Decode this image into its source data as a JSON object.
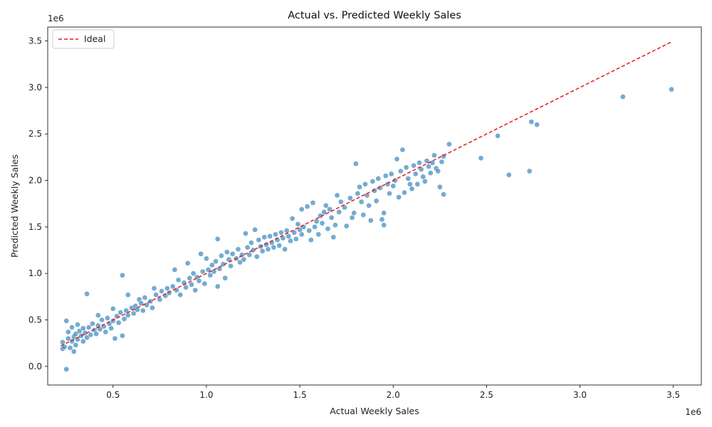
{
  "chart_data": {
    "type": "scatter",
    "title": "Actual vs. Predicted Weekly Sales",
    "xlabel": "Actual Weekly Sales",
    "ylabel": "Predicted Weekly Sales",
    "x_offset_label": "1e6",
    "y_offset_label": "1e6",
    "xlim": [
      0.15,
      3.65
    ],
    "ylim": [
      -0.2,
      3.65
    ],
    "x_ticks": [
      0.5,
      1.0,
      1.5,
      2.0,
      2.5,
      3.0,
      3.5
    ],
    "x_tick_labels": [
      "0.5",
      "1.0",
      "1.5",
      "2.0",
      "2.5",
      "3.0",
      "3.5"
    ],
    "y_ticks": [
      0.0,
      0.5,
      1.0,
      1.5,
      2.0,
      2.5,
      3.0,
      3.5
    ],
    "y_tick_labels": [
      "0.0",
      "0.5",
      "1.0",
      "1.5",
      "2.0",
      "2.5",
      "3.0",
      "3.5"
    ],
    "grid": false,
    "legend": {
      "position": "top-left",
      "entries": [
        {
          "label": "Ideal",
          "style": "dashed",
          "color": "#e41a1c"
        }
      ]
    },
    "point_color": "#1f77b4",
    "ideal_line": {
      "label": "Ideal",
      "x": [
        0.22,
        3.49
      ],
      "y": [
        0.22,
        3.49
      ],
      "color": "#e41a1c"
    },
    "points": [
      [
        0.23,
        0.26
      ],
      [
        0.23,
        0.19
      ],
      [
        0.24,
        0.21
      ],
      [
        0.25,
        0.49
      ],
      [
        0.25,
        -0.03
      ],
      [
        0.26,
        0.3
      ],
      [
        0.26,
        0.37
      ],
      [
        0.27,
        0.2
      ],
      [
        0.28,
        0.27
      ],
      [
        0.28,
        0.42
      ],
      [
        0.29,
        0.16
      ],
      [
        0.29,
        0.32
      ],
      [
        0.3,
        0.23
      ],
      [
        0.3,
        0.35
      ],
      [
        0.31,
        0.45
      ],
      [
        0.31,
        0.29
      ],
      [
        0.32,
        0.38
      ],
      [
        0.33,
        0.33
      ],
      [
        0.34,
        0.41
      ],
      [
        0.34,
        0.27
      ],
      [
        0.35,
        0.36
      ],
      [
        0.36,
        0.31
      ],
      [
        0.36,
        0.78
      ],
      [
        0.37,
        0.42
      ],
      [
        0.38,
        0.34
      ],
      [
        0.39,
        0.46
      ],
      [
        0.4,
        0.39
      ],
      [
        0.41,
        0.35
      ],
      [
        0.42,
        0.55
      ],
      [
        0.42,
        0.44
      ],
      [
        0.43,
        0.4
      ],
      [
        0.44,
        0.5
      ],
      [
        0.45,
        0.43
      ],
      [
        0.46,
        0.37
      ],
      [
        0.47,
        0.52
      ],
      [
        0.48,
        0.46
      ],
      [
        0.49,
        0.41
      ],
      [
        0.5,
        0.62
      ],
      [
        0.5,
        0.49
      ],
      [
        0.51,
        0.3
      ],
      [
        0.52,
        0.54
      ],
      [
        0.53,
        0.47
      ],
      [
        0.54,
        0.58
      ],
      [
        0.55,
        0.33
      ],
      [
        0.55,
        0.98
      ],
      [
        0.56,
        0.51
      ],
      [
        0.57,
        0.6
      ],
      [
        0.58,
        0.55
      ],
      [
        0.58,
        0.77
      ],
      [
        0.6,
        0.63
      ],
      [
        0.61,
        0.57
      ],
      [
        0.62,
        0.65
      ],
      [
        0.63,
        0.61
      ],
      [
        0.64,
        0.72
      ],
      [
        0.65,
        0.68
      ],
      [
        0.66,
        0.6
      ],
      [
        0.67,
        0.74
      ],
      [
        0.68,
        0.66
      ],
      [
        0.7,
        0.7
      ],
      [
        0.71,
        0.63
      ],
      [
        0.72,
        0.84
      ],
      [
        0.73,
        0.77
      ],
      [
        0.75,
        0.72
      ],
      [
        0.76,
        0.81
      ],
      [
        0.78,
        0.76
      ],
      [
        0.79,
        0.84
      ],
      [
        0.8,
        0.79
      ],
      [
        0.82,
        0.86
      ],
      [
        0.83,
        1.04
      ],
      [
        0.84,
        0.82
      ],
      [
        0.85,
        0.93
      ],
      [
        0.86,
        0.77
      ],
      [
        0.88,
        0.9
      ],
      [
        0.89,
        0.85
      ],
      [
        0.9,
        1.11
      ],
      [
        0.91,
        0.95
      ],
      [
        0.92,
        0.88
      ],
      [
        0.93,
        1.0
      ],
      [
        0.94,
        0.82
      ],
      [
        0.95,
        0.96
      ],
      [
        0.96,
        0.92
      ],
      [
        0.97,
        1.21
      ],
      [
        0.98,
        1.02
      ],
      [
        0.99,
        0.89
      ],
      [
        1.0,
        1.16
      ],
      [
        1.01,
        1.04
      ],
      [
        1.02,
        0.98
      ],
      [
        1.03,
        1.09
      ],
      [
        1.04,
        1.02
      ],
      [
        1.05,
        1.13
      ],
      [
        1.06,
        0.86
      ],
      [
        1.06,
        1.37
      ],
      [
        1.07,
        1.05
      ],
      [
        1.08,
        1.19
      ],
      [
        1.09,
        1.1
      ],
      [
        1.1,
        0.95
      ],
      [
        1.11,
        1.23
      ],
      [
        1.12,
        1.15
      ],
      [
        1.13,
        1.08
      ],
      [
        1.14,
        1.21
      ],
      [
        1.16,
        1.16
      ],
      [
        1.17,
        1.26
      ],
      [
        1.18,
        1.12
      ],
      [
        1.19,
        1.2
      ],
      [
        1.2,
        1.15
      ],
      [
        1.21,
        1.43
      ],
      [
        1.22,
        1.28
      ],
      [
        1.23,
        1.2
      ],
      [
        1.24,
        1.33
      ],
      [
        1.25,
        1.25
      ],
      [
        1.26,
        1.47
      ],
      [
        1.27,
        1.18
      ],
      [
        1.28,
        1.36
      ],
      [
        1.29,
        1.29
      ],
      [
        1.3,
        1.24
      ],
      [
        1.31,
        1.39
      ],
      [
        1.32,
        1.31
      ],
      [
        1.33,
        1.26
      ],
      [
        1.34,
        1.4
      ],
      [
        1.35,
        1.33
      ],
      [
        1.36,
        1.28
      ],
      [
        1.37,
        1.42
      ],
      [
        1.38,
        1.36
      ],
      [
        1.39,
        1.3
      ],
      [
        1.4,
        1.44
      ],
      [
        1.41,
        1.38
      ],
      [
        1.42,
        1.26
      ],
      [
        1.43,
        1.46
      ],
      [
        1.44,
        1.4
      ],
      [
        1.45,
        1.35
      ],
      [
        1.46,
        1.59
      ],
      [
        1.47,
        1.44
      ],
      [
        1.48,
        1.37
      ],
      [
        1.49,
        1.53
      ],
      [
        1.5,
        1.47
      ],
      [
        1.51,
        1.42
      ],
      [
        1.51,
        1.69
      ],
      [
        1.52,
        1.5
      ],
      [
        1.54,
        1.72
      ],
      [
        1.55,
        1.46
      ],
      [
        1.56,
        1.36
      ],
      [
        1.57,
        1.76
      ],
      [
        1.58,
        1.5
      ],
      [
        1.59,
        1.56
      ],
      [
        1.6,
        1.42
      ],
      [
        1.61,
        1.62
      ],
      [
        1.62,
        1.54
      ],
      [
        1.63,
        1.66
      ],
      [
        1.64,
        1.73
      ],
      [
        1.65,
        1.48
      ],
      [
        1.66,
        1.69
      ],
      [
        1.67,
        1.6
      ],
      [
        1.68,
        1.39
      ],
      [
        1.69,
        1.52
      ],
      [
        1.7,
        1.84
      ],
      [
        1.71,
        1.66
      ],
      [
        1.72,
        1.77
      ],
      [
        1.74,
        1.71
      ],
      [
        1.75,
        1.51
      ],
      [
        1.77,
        1.81
      ],
      [
        1.78,
        1.6
      ],
      [
        1.79,
        1.65
      ],
      [
        1.8,
        2.18
      ],
      [
        1.81,
        1.86
      ],
      [
        1.82,
        1.93
      ],
      [
        1.83,
        1.77
      ],
      [
        1.84,
        1.63
      ],
      [
        1.85,
        1.96
      ],
      [
        1.86,
        1.84
      ],
      [
        1.87,
        1.73
      ],
      [
        1.88,
        1.57
      ],
      [
        1.89,
        1.99
      ],
      [
        1.9,
        1.89
      ],
      [
        1.91,
        1.78
      ],
      [
        1.92,
        2.02
      ],
      [
        1.93,
        1.92
      ],
      [
        1.94,
        1.58
      ],
      [
        1.95,
        1.52
      ],
      [
        1.95,
        1.65
      ],
      [
        1.96,
        2.05
      ],
      [
        1.97,
        1.96
      ],
      [
        1.98,
        1.86
      ],
      [
        1.99,
        2.07
      ],
      [
        2.0,
        1.94
      ],
      [
        2.01,
        2.0
      ],
      [
        2.02,
        2.23
      ],
      [
        2.03,
        1.82
      ],
      [
        2.04,
        2.1
      ],
      [
        2.05,
        2.33
      ],
      [
        2.06,
        1.87
      ],
      [
        2.07,
        2.14
      ],
      [
        2.08,
        2.02
      ],
      [
        2.09,
        1.96
      ],
      [
        2.1,
        1.91
      ],
      [
        2.11,
        2.16
      ],
      [
        2.12,
        2.07
      ],
      [
        2.13,
        1.96
      ],
      [
        2.14,
        2.19
      ],
      [
        2.15,
        2.12
      ],
      [
        2.16,
        2.04
      ],
      [
        2.17,
        1.99
      ],
      [
        2.18,
        2.21
      ],
      [
        2.19,
        2.15
      ],
      [
        2.2,
        2.08
      ],
      [
        2.21,
        2.19
      ],
      [
        2.22,
        2.27
      ],
      [
        2.23,
        2.13
      ],
      [
        2.24,
        2.1
      ],
      [
        2.25,
        1.93
      ],
      [
        2.26,
        2.2
      ],
      [
        2.27,
        1.85
      ],
      [
        2.27,
        2.26
      ],
      [
        2.3,
        2.39
      ],
      [
        2.47,
        2.24
      ],
      [
        2.56,
        2.48
      ],
      [
        2.62,
        2.06
      ],
      [
        2.73,
        2.1
      ],
      [
        2.74,
        2.63
      ],
      [
        2.77,
        2.6
      ],
      [
        3.23,
        2.9
      ],
      [
        3.49,
        2.98
      ]
    ]
  }
}
